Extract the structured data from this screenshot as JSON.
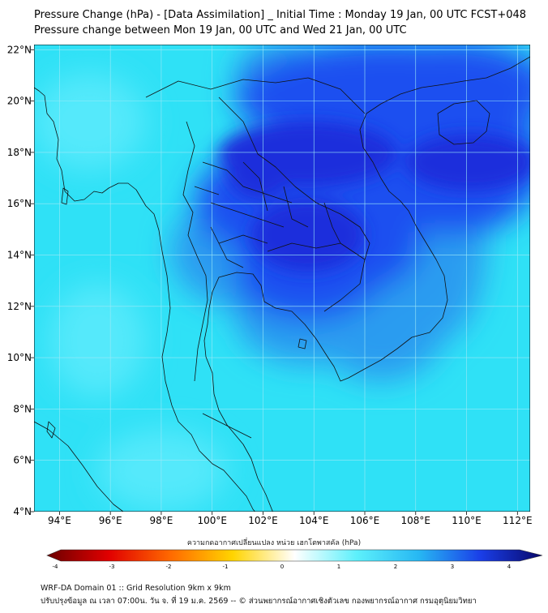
{
  "title_line1": "Pressure Change (hPa) - [Data Assimilation] _ Initial Time : Monday 19 Jan, 00 UTC FCST+048",
  "title_line2": "Pressure change between Mon 19 Jan, 00 UTC and Wed 21 Jan, 00 UTC",
  "map": {
    "lon_ticks": [
      "94°E",
      "96°E",
      "98°E",
      "100°E",
      "102°E",
      "104°E",
      "106°E",
      "108°E",
      "110°E",
      "112°E"
    ],
    "lat_ticks": [
      "22°N",
      "20°N",
      "18°N",
      "16°N",
      "14°N",
      "12°N",
      "10°N",
      "8°N",
      "6°N",
      "4°N"
    ],
    "lon_range": [
      93.0,
      112.5
    ],
    "lat_range": [
      4.0,
      22.2
    ],
    "colors": {
      "base": "#2fe1f6",
      "light": "#55e9fb",
      "mid": "#2a9cf0",
      "blue": "#1e4ff0",
      "dark": "#1a2fdc",
      "coast": "#111111",
      "grid": "#9de9f7"
    }
  },
  "colorbar": {
    "label": "ความกดอากาศเปลี่ยนแปลง หน่วย เฮกโตพาสคัล (hPa)",
    "ticks": [
      "-4",
      "-3",
      "-2",
      "-1",
      "0",
      "1",
      "2",
      "3",
      "4"
    ],
    "range": [
      -4,
      4
    ],
    "stops": [
      "#6b0000",
      "#e10000",
      "#ff6a00",
      "#ffd400",
      "#ffffff",
      "#5df0fb",
      "#27b8f3",
      "#1a3ee8",
      "#08086a"
    ]
  },
  "footer_line1": "WRF-DA Domain 01 :: Grid Resolution 9km x 9km",
  "footer_line2": "ปรับปรุงข้อมูล ณ เวลา 07:00น. วัน จ. ที่ 19 ม.ค. 2569 -- © ส่วนพยากรณ์อากาศเชิงตัวเลข กองพยากรณ์อากาศ กรมอุตุนิยมวิทยา"
}
